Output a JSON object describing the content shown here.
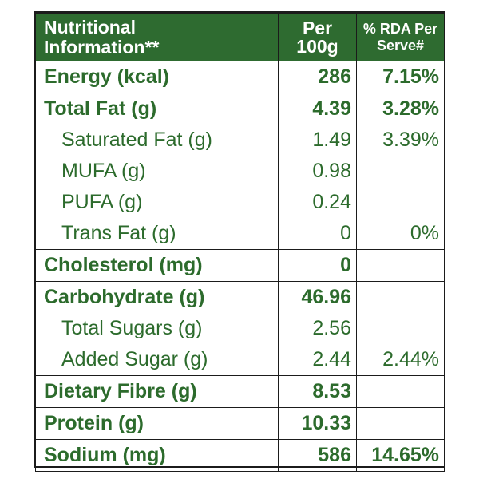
{
  "header": {
    "name_line1": "Nutritional",
    "name_line2": "Information**",
    "per_line1": "Per",
    "per_line2": "100g",
    "rda_line1": "% RDA Per",
    "rda_line2": "Serve#"
  },
  "rows": [
    {
      "name": "Energy (kcal)",
      "value": "286",
      "rda": "7.15%"
    },
    {
      "name": "Total Fat (g)",
      "value": "4.39",
      "rda": "3.28%"
    },
    {
      "name": "Saturated Fat (g)",
      "value": "1.49",
      "rda": "3.39%"
    },
    {
      "name": "MUFA (g)",
      "value": "0.98",
      "rda": ""
    },
    {
      "name": "PUFA (g)",
      "value": "0.24",
      "rda": ""
    },
    {
      "name": "Trans Fat (g)",
      "value": "0",
      "rda": "0%"
    },
    {
      "name": "Cholesterol (mg)",
      "value": "0",
      "rda": ""
    },
    {
      "name": "Carbohydrate (g)",
      "value": "46.96",
      "rda": ""
    },
    {
      "name": "Total Sugars (g)",
      "value": "2.56",
      "rda": ""
    },
    {
      "name": "Added Sugar (g)",
      "value": "2.44",
      "rda": "2.44%"
    },
    {
      "name": "Dietary Fibre (g)",
      "value": "8.53",
      "rda": ""
    },
    {
      "name": "Protein (g)",
      "value": "10.33",
      "rda": ""
    },
    {
      "name": "Sodium (mg)",
      "value": "586",
      "rda": "14.65%"
    }
  ],
  "colors": {
    "header_bg": "#2e6b30",
    "header_text": "#ffffff",
    "body_text": "#2c6b2c",
    "border": "#1b1b1b"
  }
}
